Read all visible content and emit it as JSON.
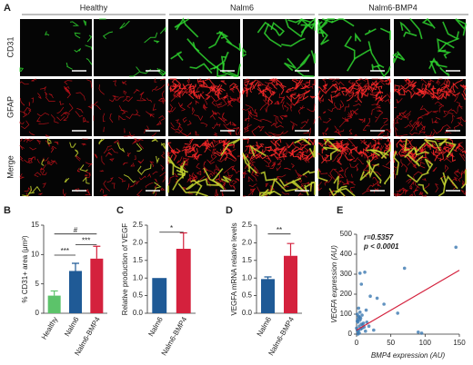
{
  "figure": {
    "panel_labels": [
      "A",
      "B",
      "C",
      "D",
      "E"
    ],
    "groups": [
      "Healthy",
      "Nalm6",
      "Nalm6-BMP4"
    ],
    "rows": [
      "CD31",
      "GFAP",
      "Merge"
    ]
  },
  "chart_data": [
    {
      "type": "bar",
      "categories": [
        "Healthy",
        "Nalm6",
        "Nalm6-BMP4"
      ],
      "values": [
        3.0,
        7.2,
        9.3
      ],
      "errors": [
        0.8,
        1.3,
        2.1
      ],
      "colors": [
        "#5cc36a",
        "#1f5a96",
        "#d4213d"
      ],
      "ylabel": "% CD31+ area (μm²)",
      "ylim": [
        0,
        15
      ],
      "yticks": [
        0,
        5,
        10,
        15
      ],
      "significance": [
        "***",
        "***",
        "#"
      ]
    },
    {
      "type": "bar",
      "categories": [
        "Nalm6",
        "Nalm6-BMP4"
      ],
      "values": [
        1.0,
        1.83
      ],
      "errors": [
        0,
        0.45
      ],
      "colors": [
        "#1f5a96",
        "#d4213d"
      ],
      "ylabel": "Relative production of VEGF",
      "ylim": [
        0,
        2.5
      ],
      "yticks": [
        {
          "value": 0,
          "label": "0.0"
        },
        {
          "value": 0.5,
          "label": "0.5"
        },
        {
          "value": 1,
          "label": "1.0"
        },
        {
          "value": 1.5,
          "label": "1.5"
        },
        {
          "value": 2,
          "label": "2.0"
        },
        {
          "value": 2.5,
          "label": "2.5"
        }
      ],
      "significance": [
        "*"
      ]
    },
    {
      "type": "bar",
      "categories": [
        "Nalm6",
        "Nalm6-BMP4"
      ],
      "values": [
        0.97,
        1.63
      ],
      "errors": [
        0.06,
        0.35
      ],
      "colors": [
        "#1f5a96",
        "#d4213d"
      ],
      "ylabel": "VEGFA mRNA relative levels",
      "ylim": [
        0,
        2.5
      ],
      "yticks": [
        {
          "value": 0,
          "label": "0.0"
        },
        {
          "value": 0.5,
          "label": "0.5"
        },
        {
          "value": 1,
          "label": "1.0"
        },
        {
          "value": 1.5,
          "label": "1.5"
        },
        {
          "value": 2,
          "label": "2.0"
        },
        {
          "value": 2.5,
          "label": "2.5"
        }
      ],
      "significance": [
        "**"
      ]
    },
    {
      "type": "scatter",
      "xlabel": "BMP4 expression (AU)",
      "ylabel": "VEGFA expression (AU)",
      "color": "#3b78b0",
      "x": [
        145,
        5,
        12,
        7,
        20,
        30,
        40,
        60,
        70,
        90,
        95,
        3,
        2,
        4,
        6,
        8,
        10,
        1,
        2,
        3,
        5,
        6,
        9,
        11,
        13,
        15,
        4,
        1,
        2,
        7,
        0,
        1,
        3,
        5,
        8,
        2,
        4,
        18,
        25,
        14
      ],
      "y": [
        435,
        305,
        310,
        250,
        190,
        180,
        150,
        105,
        330,
        10,
        5,
        130,
        60,
        40,
        80,
        30,
        55,
        20,
        10,
        90,
        70,
        25,
        45,
        35,
        15,
        60,
        5,
        100,
        75,
        50,
        30,
        65,
        20,
        110,
        95,
        0,
        85,
        40,
        20,
        120
      ],
      "fit": {
        "x": [
          0,
          150
        ],
        "y": [
          20,
          320
        ],
        "color": "#d4213d"
      },
      "annotations": [
        "r=0.5357",
        "p < 0.0001"
      ],
      "xlim": [
        0,
        150
      ],
      "xticks": [
        0,
        50,
        100,
        150
      ],
      "ylim": [
        0,
        500
      ],
      "yticks": [
        0,
        100,
        200,
        300,
        400,
        500
      ]
    }
  ]
}
